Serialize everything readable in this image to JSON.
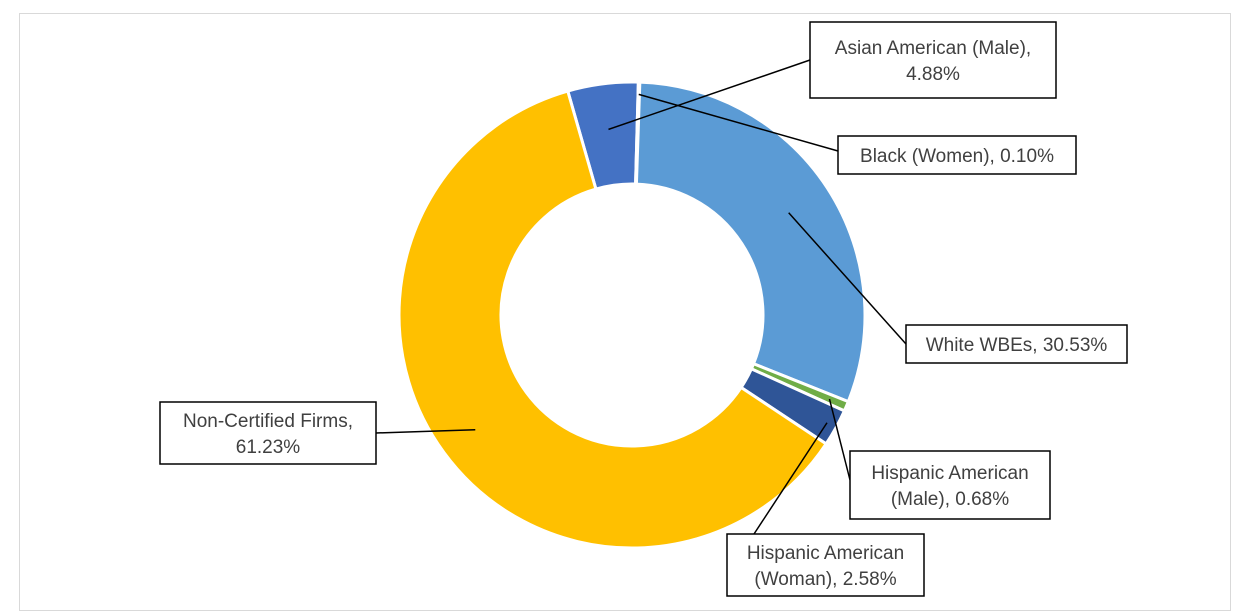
{
  "chart_data": {
    "type": "pie",
    "donut": true,
    "title": "",
    "legend": "none",
    "slices": [
      {
        "name": "Asian American (Male)",
        "value": 4.88,
        "label_lines": [
          "Asian American (Male),",
          "4.88%"
        ],
        "color": "#4472c4"
      },
      {
        "name": "Black (Women)",
        "value": 0.1,
        "label_lines": [
          "Black (Women), 0.10%"
        ],
        "color": "#a5a5a5"
      },
      {
        "name": "White WBEs",
        "value": 30.53,
        "label_lines": [
          "White WBEs, 30.53%"
        ],
        "color": "#5b9bd5"
      },
      {
        "name": "Hispanic American (Male)",
        "value": 0.68,
        "label_lines": [
          "Hispanic American",
          "(Male), 0.68%"
        ],
        "color": "#70ad47"
      },
      {
        "name": "Hispanic American (Woman)",
        "value": 2.58,
        "label_lines": [
          "Hispanic American",
          "(Woman), 2.58%"
        ],
        "color": "#2f5597"
      },
      {
        "name": "Non-Certified Firms",
        "value": 61.23,
        "label_lines": [
          "Non-Certified Firms,",
          "61.23%"
        ],
        "color": "#ffc000"
      }
    ]
  }
}
